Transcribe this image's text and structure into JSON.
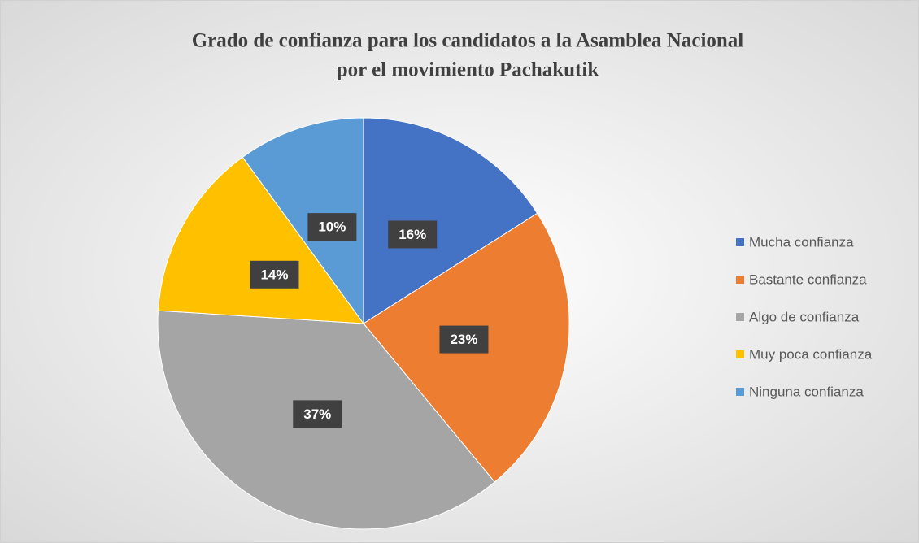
{
  "chart_data": {
    "type": "pie",
    "title": [
      "Grado de confianza  para los candidatos  a la Asamblea Nacional",
      "por el movimiento  Pachakutik"
    ],
    "categories": [
      "Mucha confianza",
      "Bastante confianza",
      "Algo de confianza",
      "Muy poca confianza",
      "Ninguna confianza"
    ],
    "values": [
      16,
      23,
      37,
      14,
      10
    ],
    "value_labels": [
      "16%",
      "23%",
      "37%",
      "14%",
      "10%"
    ],
    "colors": [
      "#4472c4",
      "#ed7d31",
      "#a5a5a5",
      "#ffc000",
      "#5b9bd5"
    ],
    "legend": "right"
  }
}
